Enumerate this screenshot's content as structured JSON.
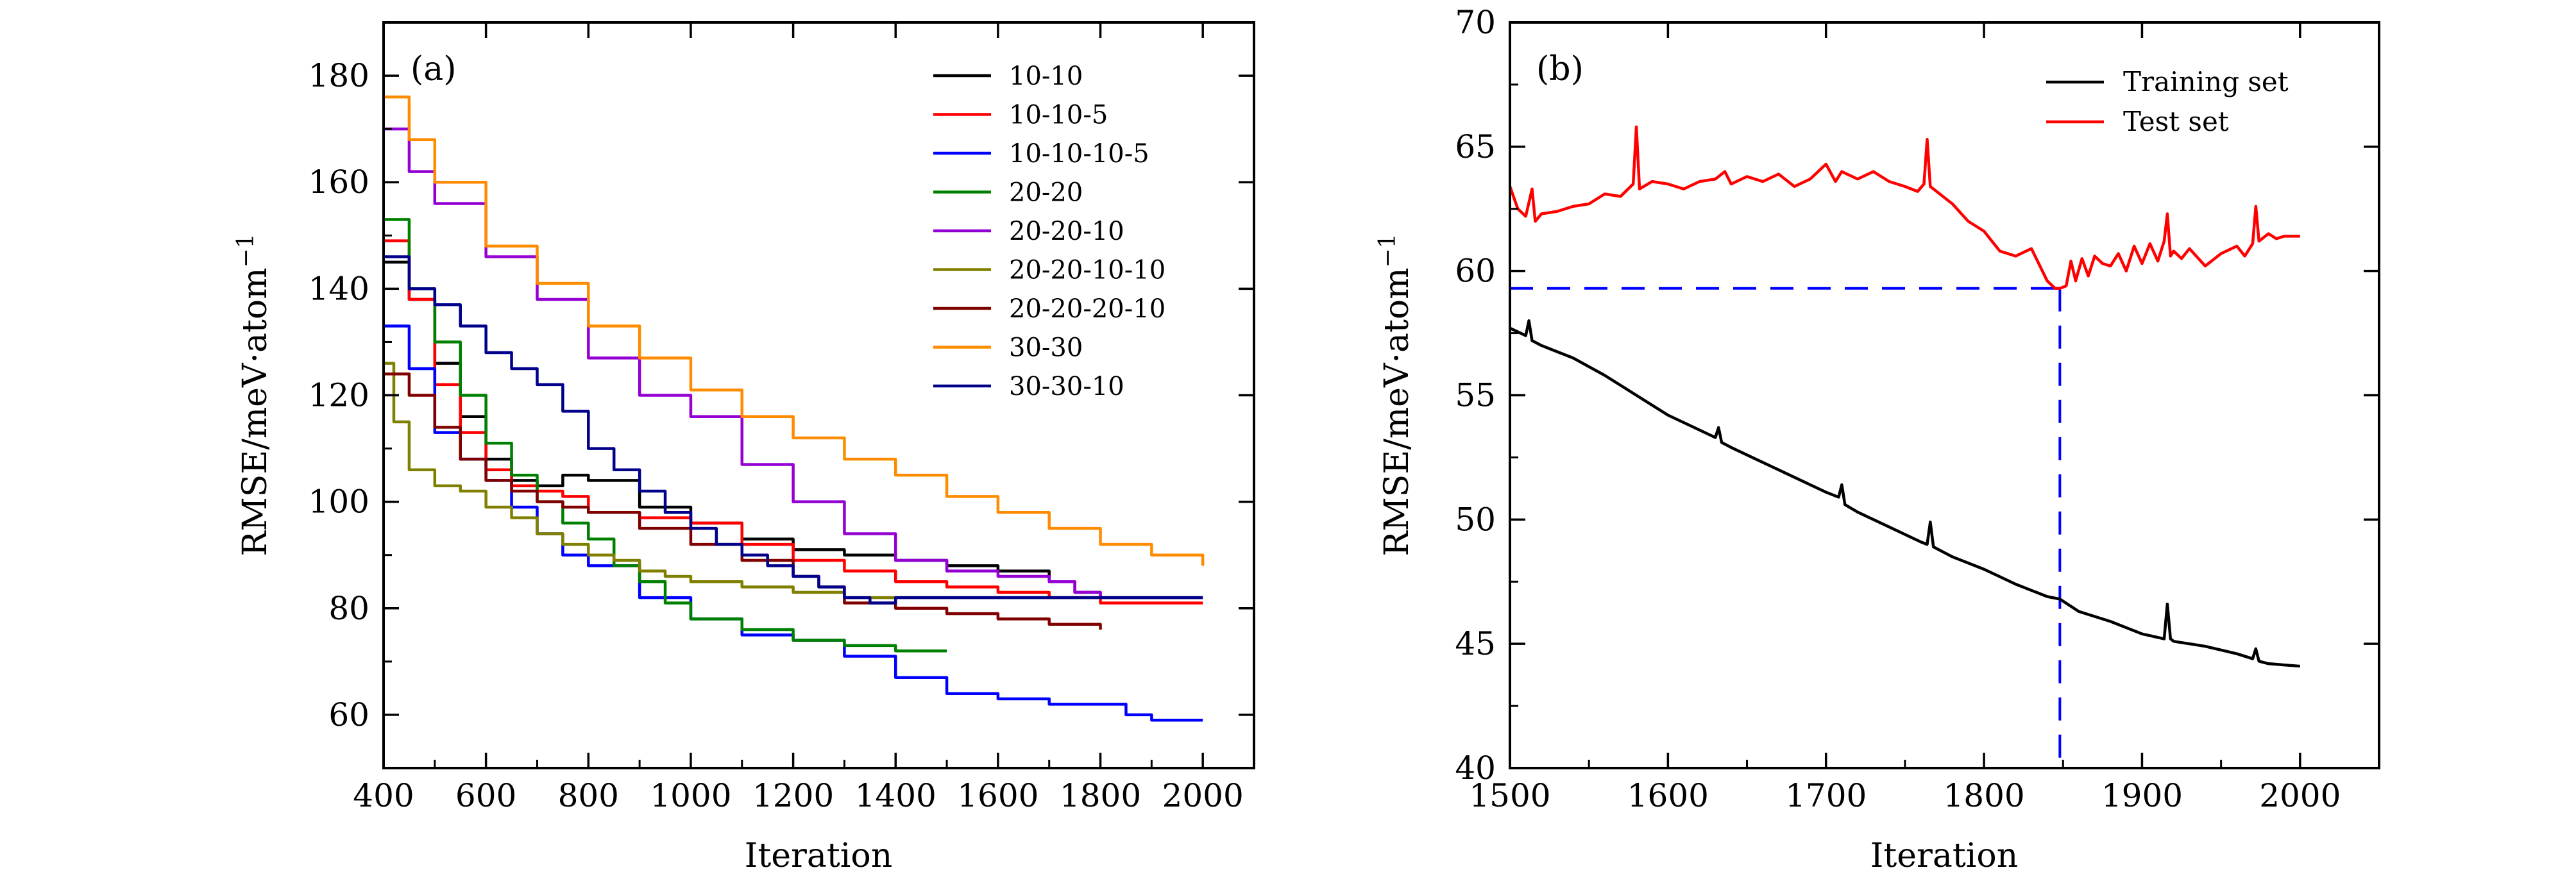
{
  "chart_data": [
    {
      "type": "line",
      "panel_label": "(a)",
      "xlabel": "Iteration",
      "ylabel": "RMSE/meV·atom",
      "ylabel_superscript": "−1",
      "xlim": [
        400,
        2100
      ],
      "ylim": [
        50,
        190
      ],
      "xticks": [
        400,
        600,
        800,
        1000,
        1200,
        1400,
        1600,
        1800,
        2000
      ],
      "yticks": [
        60,
        80,
        100,
        120,
        140,
        160,
        180
      ],
      "grid": false,
      "legend_position": "top-right",
      "series": [
        {
          "name": "10-10",
          "color": "#000000",
          "x": [
            400,
            450,
            500,
            550,
            600,
            650,
            700,
            750,
            800,
            900,
            1000,
            1100,
            1200,
            1300,
            1400,
            1500,
            1600,
            1700,
            1750,
            1800,
            2000
          ],
          "y": [
            145,
            138,
            126,
            116,
            108,
            104,
            103,
            105,
            104,
            99,
            96,
            93,
            91,
            90,
            89,
            88,
            87,
            85,
            83,
            82,
            82
          ]
        },
        {
          "name": "10-10-5",
          "color": "#ff0000",
          "x": [
            400,
            450,
            500,
            550,
            600,
            650,
            700,
            750,
            800,
            900,
            1000,
            1100,
            1200,
            1300,
            1400,
            1500,
            1600,
            1700,
            1800,
            1900,
            2000
          ],
          "y": [
            149,
            138,
            122,
            113,
            106,
            103,
            102,
            101,
            98,
            97,
            96,
            92,
            89,
            87,
            85,
            84,
            83,
            82,
            81,
            81,
            81
          ]
        },
        {
          "name": "10-10-10-5",
          "color": "#0000ff",
          "x": [
            400,
            450,
            500,
            550,
            600,
            650,
            700,
            750,
            800,
            900,
            1000,
            1100,
            1200,
            1300,
            1400,
            1500,
            1600,
            1700,
            1800,
            1850,
            1900,
            2000
          ],
          "y": [
            133,
            125,
            113,
            108,
            104,
            99,
            94,
            90,
            88,
            82,
            78,
            75,
            74,
            71,
            67,
            64,
            63,
            62,
            62,
            60,
            59,
            59
          ]
        },
        {
          "name": "20-20",
          "color": "#008000",
          "x": [
            400,
            450,
            500,
            550,
            600,
            650,
            700,
            750,
            800,
            850,
            900,
            950,
            1000,
            1100,
            1200,
            1300,
            1400,
            1500
          ],
          "y": [
            153,
            140,
            130,
            120,
            111,
            105,
            100,
            96,
            93,
            88,
            85,
            81,
            78,
            76,
            74,
            73,
            72,
            72
          ]
        },
        {
          "name": "20-20-10",
          "color": "#9400d3",
          "x": [
            400,
            450,
            500,
            600,
            700,
            800,
            900,
            1000,
            1100,
            1200,
            1300,
            1400,
            1500,
            1600,
            1700,
            1750,
            1800
          ],
          "y": [
            170,
            162,
            156,
            146,
            138,
            127,
            120,
            116,
            107,
            100,
            94,
            89,
            87,
            86,
            85,
            83,
            82
          ]
        },
        {
          "name": "20-20-10-10",
          "color": "#808000",
          "x": [
            400,
            420,
            450,
            500,
            550,
            600,
            650,
            700,
            750,
            800,
            850,
            900,
            950,
            1000,
            1100,
            1200,
            1300,
            1400,
            1500,
            1600,
            1800
          ],
          "y": [
            126,
            115,
            106,
            103,
            102,
            99,
            97,
            94,
            92,
            90,
            89,
            87,
            86,
            85,
            84,
            83,
            82,
            82,
            82,
            82,
            82
          ]
        },
        {
          "name": "20-20-20-10",
          "color": "#800000",
          "x": [
            400,
            450,
            500,
            550,
            600,
            650,
            700,
            750,
            800,
            900,
            1000,
            1100,
            1200,
            1250,
            1300,
            1400,
            1500,
            1600,
            1700,
            1800
          ],
          "y": [
            124,
            120,
            114,
            108,
            104,
            102,
            100,
            99,
            98,
            95,
            92,
            89,
            86,
            84,
            81,
            80,
            79,
            78,
            77,
            76
          ]
        },
        {
          "name": "30-30",
          "color": "#ff8c00",
          "x": [
            400,
            450,
            500,
            600,
            700,
            800,
            900,
            1000,
            1100,
            1200,
            1300,
            1400,
            1500,
            1600,
            1700,
            1800,
            1900,
            2000
          ],
          "y": [
            176,
            168,
            160,
            148,
            141,
            133,
            127,
            121,
            116,
            112,
            108,
            105,
            101,
            98,
            95,
            92,
            90,
            88
          ]
        },
        {
          "name": "30-30-10",
          "color": "#00008b",
          "x": [
            400,
            450,
            500,
            550,
            600,
            650,
            700,
            750,
            800,
            850,
            900,
            950,
            1000,
            1050,
            1100,
            1150,
            1200,
            1250,
            1300,
            1350,
            1400,
            1500,
            1600,
            1700,
            1800,
            1900,
            2000
          ],
          "y": [
            146,
            140,
            137,
            133,
            128,
            125,
            122,
            117,
            110,
            106,
            102,
            98,
            95,
            92,
            90,
            88,
            86,
            84,
            82,
            81,
            82,
            82,
            82,
            82,
            82,
            82,
            82
          ]
        }
      ]
    },
    {
      "type": "line",
      "panel_label": "(b)",
      "xlabel": "Iteration",
      "ylabel": "RMSE/meV·atom",
      "ylabel_superscript": "−1",
      "xlim": [
        1500,
        2050
      ],
      "ylim": [
        40,
        70
      ],
      "xticks": [
        1500,
        1600,
        1700,
        1800,
        1900,
        2000
      ],
      "yticks": [
        40,
        45,
        50,
        55,
        60,
        65,
        70
      ],
      "grid": false,
      "legend_position": "top-right",
      "reference_lines": {
        "x": 1848,
        "y": 59.3,
        "color": "#0000ff",
        "style": "dashed"
      },
      "series": [
        {
          "name": "Training set",
          "color": "#000000",
          "x": [
            1500,
            1510,
            1512,
            1514,
            1520,
            1540,
            1560,
            1580,
            1600,
            1620,
            1630,
            1632,
            1634,
            1640,
            1660,
            1680,
            1700,
            1708,
            1710,
            1712,
            1720,
            1740,
            1760,
            1764,
            1766,
            1768,
            1780,
            1800,
            1820,
            1840,
            1848,
            1860,
            1880,
            1900,
            1914,
            1916,
            1918,
            1920,
            1940,
            1960,
            1970,
            1972,
            1974,
            1980,
            2000
          ],
          "y": [
            57.7,
            57.4,
            58.0,
            57.2,
            57.0,
            56.5,
            55.8,
            55.0,
            54.2,
            53.6,
            53.3,
            53.7,
            53.1,
            52.9,
            52.3,
            51.7,
            51.1,
            50.9,
            51.4,
            50.6,
            50.3,
            49.7,
            49.1,
            49.0,
            49.9,
            48.9,
            48.5,
            48.0,
            47.4,
            46.9,
            46.8,
            46.3,
            45.9,
            45.4,
            45.2,
            46.6,
            45.2,
            45.1,
            44.9,
            44.6,
            44.4,
            44.8,
            44.3,
            44.2,
            44.1
          ]
        },
        {
          "name": "Test set",
          "color": "#ff0000",
          "x": [
            1500,
            1505,
            1510,
            1514,
            1516,
            1520,
            1530,
            1540,
            1550,
            1560,
            1570,
            1578,
            1580,
            1582,
            1590,
            1600,
            1610,
            1620,
            1630,
            1636,
            1640,
            1650,
            1660,
            1670,
            1680,
            1690,
            1700,
            1706,
            1710,
            1720,
            1730,
            1740,
            1750,
            1758,
            1762,
            1764,
            1766,
            1770,
            1780,
            1790,
            1800,
            1810,
            1820,
            1830,
            1840,
            1845,
            1848,
            1852,
            1855,
            1858,
            1862,
            1866,
            1870,
            1875,
            1880,
            1885,
            1890,
            1895,
            1900,
            1905,
            1910,
            1914,
            1916,
            1918,
            1920,
            1925,
            1930,
            1940,
            1950,
            1960,
            1965,
            1970,
            1972,
            1974,
            1980,
            1985,
            1990,
            2000
          ],
          "y": [
            63.4,
            62.5,
            62.2,
            63.3,
            62.0,
            62.3,
            62.4,
            62.6,
            62.7,
            63.1,
            63.0,
            63.5,
            65.8,
            63.3,
            63.6,
            63.5,
            63.3,
            63.6,
            63.7,
            64.0,
            63.5,
            63.8,
            63.6,
            63.9,
            63.4,
            63.7,
            64.3,
            63.6,
            64.0,
            63.7,
            64.0,
            63.6,
            63.4,
            63.2,
            63.5,
            65.3,
            63.4,
            63.2,
            62.7,
            62.0,
            61.6,
            60.8,
            60.6,
            60.9,
            59.6,
            59.3,
            59.3,
            59.4,
            60.4,
            59.6,
            60.5,
            59.8,
            60.6,
            60.3,
            60.2,
            60.7,
            60.0,
            61.0,
            60.3,
            61.1,
            60.4,
            61.2,
            62.3,
            60.6,
            60.8,
            60.5,
            60.9,
            60.2,
            60.7,
            61.0,
            60.6,
            61.1,
            62.6,
            61.2,
            61.5,
            61.3,
            61.4,
            61.4
          ]
        }
      ]
    }
  ]
}
